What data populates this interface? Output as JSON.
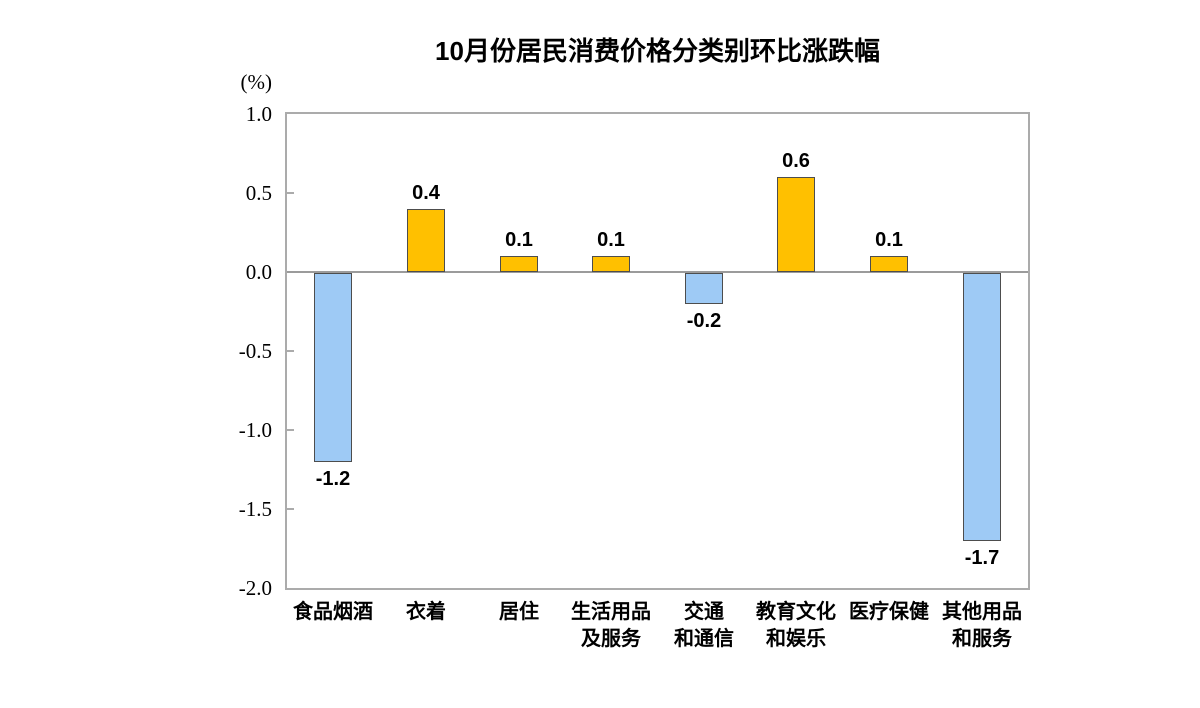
{
  "title": "10月份居民消费价格分类别环比涨跌幅",
  "unit_label": "(%)",
  "chart_data": {
    "type": "bar",
    "title": "10月份居民消费价格分类别环比涨跌幅",
    "ylabel": "(%)",
    "xlabel": "",
    "categories": [
      "食品烟酒",
      "衣着",
      "居住",
      "生活用品\n及服务",
      "交通\n和通信",
      "教育文化\n和娱乐",
      "医疗保健",
      "其他用品\n和服务"
    ],
    "values": [
      -1.2,
      0.4,
      0.1,
      0.1,
      -0.2,
      0.6,
      0.1,
      -1.7
    ],
    "value_labels": [
      "-1.2",
      "0.4",
      "0.1",
      "0.1",
      "-0.2",
      "0.6",
      "0.1",
      "-1.7"
    ],
    "ylim": [
      -2.0,
      1.0
    ],
    "yticks": [
      "1.0",
      "0.5",
      "0.0",
      "-0.5",
      "-1.0",
      "-1.5",
      "-2.0"
    ],
    "grid": false,
    "legend": null,
    "colors": {
      "positive_bar": "#FFC000",
      "negative_bar": "#9ECAF5",
      "bar_border": "#4D4D4D",
      "axis_border": "#ABABAB",
      "zero_line": "#9B9B9B",
      "text": "#000000"
    }
  }
}
